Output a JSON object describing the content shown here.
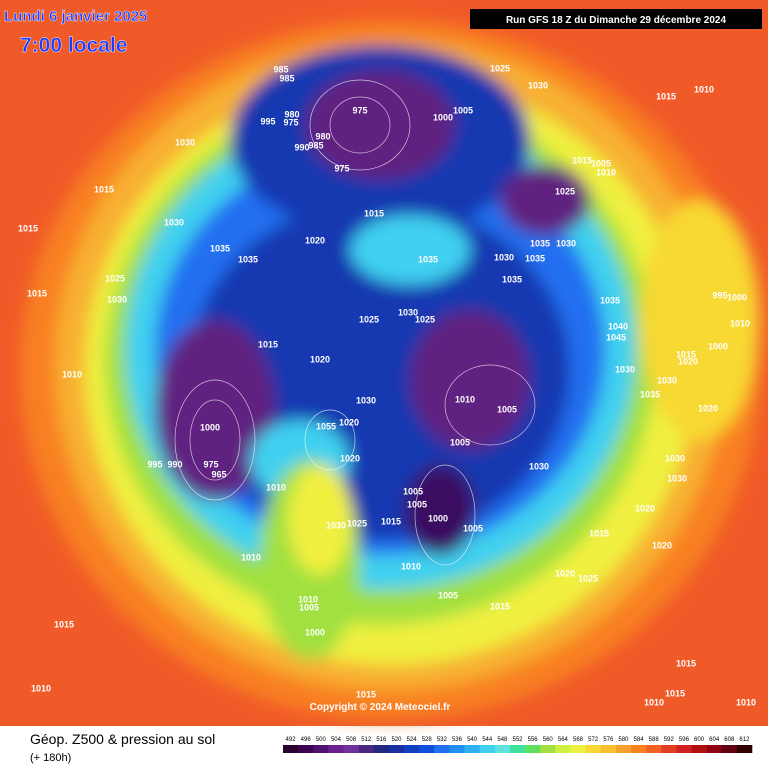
{
  "header": {
    "date": "Lundi 6 janvier 2025",
    "time": "7:00 locale",
    "run": "Run GFS 18 Z du Dimanche 29 décembre 2024"
  },
  "copyright": "Copyright © 2024 Meteociel.fr",
  "footer": {
    "title": "Géop. Z500 & pression au sol",
    "lead": "(+ 180h)"
  },
  "legend": {
    "ticks": [
      492,
      496,
      500,
      504,
      508,
      512,
      516,
      520,
      524,
      528,
      532,
      536,
      540,
      544,
      548,
      552,
      556,
      560,
      564,
      568,
      572,
      576,
      580,
      584,
      588,
      592,
      596,
      600,
      604,
      608,
      612
    ],
    "colors": [
      "#2a0030",
      "#3c0050",
      "#501070",
      "#6a2090",
      "#7030a0",
      "#4a2880",
      "#202880",
      "#1830a0",
      "#1040c0",
      "#1050e0",
      "#2070f0",
      "#2090f0",
      "#30b0f0",
      "#40d0f0",
      "#60e0e0",
      "#40e0a0",
      "#60e060",
      "#a0e040",
      "#d0f040",
      "#f0f040",
      "#f8d830",
      "#f8c030",
      "#f8a030",
      "#f88020",
      "#f06020",
      "#e04020",
      "#d02020",
      "#b01010",
      "#900010",
      "#600010",
      "#300000"
    ]
  },
  "pressure_labels": [
    985,
    985,
    975,
    1000,
    1005,
    1025,
    1030,
    1015,
    1010,
    980,
    995,
    975,
    980,
    990,
    985,
    975,
    1030,
    1015,
    1015,
    1030,
    1035,
    1035,
    1020,
    1015,
    1015,
    1005,
    1010,
    1025,
    1035,
    1030,
    1035,
    1030,
    1035,
    1035,
    1025,
    1030,
    1015,
    1035,
    1040,
    1045,
    995,
    1000,
    1010,
    1000,
    1025,
    1030,
    1025,
    1015,
    1020,
    1030,
    1015,
    1020,
    1030,
    1035,
    1020,
    1010,
    1030,
    1010,
    1005,
    1000,
    1005,
    1020,
    1055,
    1020,
    995,
    990,
    975,
    965,
    1010,
    1005,
    1005,
    1015,
    1000,
    1005,
    1030,
    1030,
    1030,
    1020,
    1015,
    1020,
    1030,
    1025,
    1010,
    1010,
    1020,
    1025,
    1010,
    1005,
    1005,
    1015,
    1000,
    1015,
    1015,
    1015,
    1010,
    1015,
    1010,
    1010
  ]
}
